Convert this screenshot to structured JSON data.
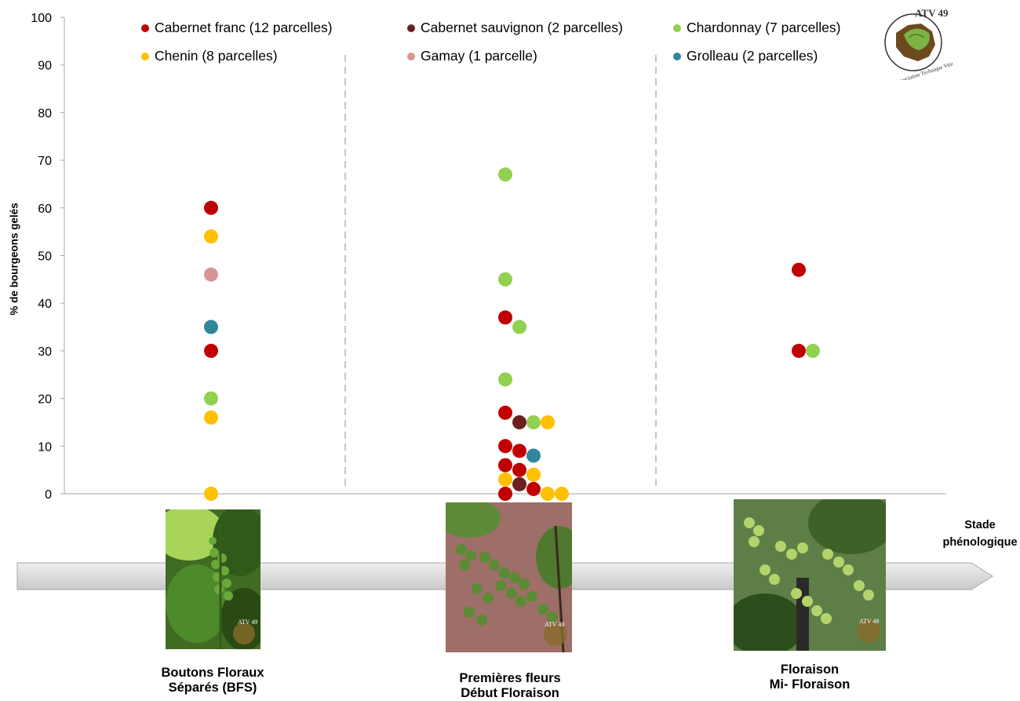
{
  "chart_data": {
    "type": "scatter",
    "ylabel": "% de bourgeons gelés",
    "ylim": [
      0,
      100
    ],
    "yticks": [
      0,
      10,
      20,
      30,
      40,
      50,
      60,
      70,
      80,
      90,
      100
    ],
    "grid": false,
    "legend_position": "top",
    "categories": [
      "Boutons Floraux Séparés (BFS)",
      "Premières fleurs Début Floraison",
      "Floraison Mi- Floraison"
    ],
    "xlabel": "Stade phénologique",
    "series": [
      {
        "name": "Cabernet franc (12 parcelles)",
        "color": "#c00000",
        "points": [
          {
            "stage": 0,
            "y": 60
          },
          {
            "stage": 0,
            "y": 30
          },
          {
            "stage": 1,
            "y": 37
          },
          {
            "stage": 1,
            "y": 17
          },
          {
            "stage": 1,
            "y": 10
          },
          {
            "stage": 1,
            "y": 9
          },
          {
            "stage": 1,
            "y": 6
          },
          {
            "stage": 1,
            "y": 5
          },
          {
            "stage": 1,
            "y": 1
          },
          {
            "stage": 1,
            "y": 0
          },
          {
            "stage": 2,
            "y": 47
          },
          {
            "stage": 2,
            "y": 30
          }
        ]
      },
      {
        "name": "Cabernet sauvignon (2 parcelles)",
        "color": "#6b1f1f",
        "points": [
          {
            "stage": 1,
            "y": 15
          },
          {
            "stage": 1,
            "y": 2
          }
        ]
      },
      {
        "name": "Chardonnay (7 parcelles)",
        "color": "#92d050",
        "points": [
          {
            "stage": 0,
            "y": 20
          },
          {
            "stage": 1,
            "y": 67
          },
          {
            "stage": 1,
            "y": 45
          },
          {
            "stage": 1,
            "y": 35
          },
          {
            "stage": 1,
            "y": 24
          },
          {
            "stage": 1,
            "y": 15
          },
          {
            "stage": 2,
            "y": 30
          }
        ]
      },
      {
        "name": "Chenin (8 parcelles)",
        "color": "#ffc000",
        "points": [
          {
            "stage": 0,
            "y": 54
          },
          {
            "stage": 0,
            "y": 16
          },
          {
            "stage": 0,
            "y": 0
          },
          {
            "stage": 1,
            "y": 15
          },
          {
            "stage": 1,
            "y": 4
          },
          {
            "stage": 1,
            "y": 3
          },
          {
            "stage": 1,
            "y": 0
          },
          {
            "stage": 1,
            "y": 0
          }
        ]
      },
      {
        "name": "Gamay (1 parcelle)",
        "color": "#d99594",
        "points": [
          {
            "stage": 0,
            "y": 46
          }
        ]
      },
      {
        "name": "Grolleau (2 parcelles)",
        "color": "#31859c",
        "points": [
          {
            "stage": 0,
            "y": 35
          },
          {
            "stage": 1,
            "y": 8
          }
        ]
      }
    ]
  },
  "logo": {
    "title": "ATV 49",
    "subtitle": "Association Technique Viticole"
  },
  "photo_watermark": "ATV 49"
}
